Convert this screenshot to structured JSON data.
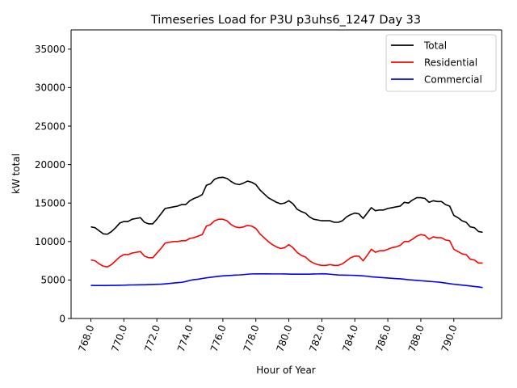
{
  "chart_data": {
    "type": "line",
    "title": "Timeseries Load for P3U p3uhs6_1247  Day 33",
    "xlabel": "Hour of Year",
    "ylabel": "kW total",
    "xlim": [
      766.8,
      792.9
    ],
    "ylim": [
      0,
      37500
    ],
    "xticks": [
      768,
      770,
      772,
      774,
      776,
      778,
      780,
      782,
      784,
      786,
      788,
      790
    ],
    "xtick_labels": [
      "768.0",
      "770.0",
      "772.0",
      "774.0",
      "776.0",
      "778.0",
      "780.0",
      "782.0",
      "784.0",
      "786.0",
      "788.0",
      "790.0"
    ],
    "yticks": [
      0,
      5000,
      10000,
      15000,
      20000,
      25000,
      30000,
      35000
    ],
    "ytick_labels": [
      "0",
      "5000",
      "10000",
      "15000",
      "20000",
      "25000",
      "30000",
      "35000"
    ],
    "x": [
      768.0,
      768.25,
      768.5,
      768.75,
      769.0,
      769.25,
      769.5,
      769.75,
      770.0,
      770.25,
      770.5,
      770.75,
      771.0,
      771.25,
      771.5,
      771.75,
      772.0,
      772.25,
      772.5,
      772.75,
      773.0,
      773.25,
      773.5,
      773.75,
      774.0,
      774.25,
      774.5,
      774.75,
      775.0,
      775.25,
      775.5,
      775.75,
      776.0,
      776.25,
      776.5,
      776.75,
      777.0,
      777.25,
      777.5,
      777.75,
      778.0,
      778.25,
      778.5,
      778.75,
      779.0,
      779.25,
      779.5,
      779.75,
      780.0,
      780.25,
      780.5,
      780.75,
      781.0,
      781.25,
      781.5,
      781.75,
      782.0,
      782.25,
      782.5,
      782.75,
      783.0,
      783.25,
      783.5,
      783.75,
      784.0,
      784.25,
      784.5,
      784.75,
      785.0,
      785.25,
      785.5,
      785.75,
      786.0,
      786.25,
      786.5,
      786.75,
      787.0,
      787.25,
      787.5,
      787.75,
      788.0,
      788.25,
      788.5,
      788.75,
      789.0,
      789.25,
      789.5,
      789.75,
      790.0,
      790.25,
      790.5,
      790.75,
      791.0,
      791.25,
      791.5,
      791.75
    ],
    "series": [
      {
        "name": "Total",
        "color": "#000000",
        "values": [
          11900,
          11800,
          11400,
          11000,
          10950,
          11300,
          11800,
          12400,
          12600,
          12600,
          12900,
          13000,
          13100,
          12500,
          12300,
          12300,
          12900,
          13600,
          14300,
          14400,
          14500,
          14600,
          14800,
          14800,
          15300,
          15600,
          15800,
          16100,
          17300,
          17500,
          18100,
          18300,
          18350,
          18200,
          17800,
          17500,
          17400,
          17600,
          17850,
          17700,
          17400,
          16700,
          16200,
          15700,
          15400,
          15100,
          14900,
          15000,
          15300,
          14900,
          14200,
          13900,
          13700,
          13200,
          12900,
          12800,
          12700,
          12700,
          12700,
          12500,
          12500,
          12700,
          13200,
          13500,
          13700,
          13600,
          13000,
          13700,
          14400,
          14000,
          14100,
          14100,
          14300,
          14400,
          14500,
          14600,
          15100,
          15000,
          15400,
          15700,
          15700,
          15600,
          15100,
          15300,
          15200,
          15200,
          14800,
          14600,
          13400,
          13100,
          12700,
          12500,
          11900,
          11800,
          11300,
          11200
        ]
      },
      {
        "name": "Residential",
        "color": "#ff0000",
        "values": [
          7600,
          7500,
          7100,
          6800,
          6700,
          7000,
          7500,
          8000,
          8300,
          8300,
          8500,
          8600,
          8700,
          8100,
          7900,
          7900,
          8500,
          9100,
          9800,
          9900,
          10000,
          10000,
          10100,
          10100,
          10400,
          10500,
          10700,
          10900,
          12000,
          12200,
          12700,
          12900,
          12900,
          12700,
          12200,
          11900,
          11800,
          11900,
          12100,
          12000,
          11700,
          11000,
          10500,
          10000,
          9600,
          9300,
          9100,
          9200,
          9600,
          9200,
          8600,
          8200,
          8000,
          7500,
          7200,
          7000,
          6900,
          6900,
          7000,
          6900,
          6900,
          7100,
          7500,
          7900,
          8100,
          8100,
          7500,
          8200,
          9000,
          8600,
          8800,
          8800,
          9000,
          9200,
          9300,
          9500,
          10000,
          10000,
          10300,
          10700,
          10900,
          10800,
          10300,
          10600,
          10500,
          10500,
          10200,
          10100,
          9000,
          8700,
          8400,
          8300,
          7700,
          7600,
          7200,
          7200
        ]
      },
      {
        "name": "Commercial",
        "color": "#0000ff",
        "values": [
          4300,
          4290,
          4290,
          4290,
          4290,
          4300,
          4300,
          4310,
          4320,
          4350,
          4360,
          4370,
          4380,
          4380,
          4400,
          4420,
          4440,
          4460,
          4500,
          4550,
          4600,
          4650,
          4700,
          4800,
          4950,
          5050,
          5100,
          5200,
          5280,
          5350,
          5420,
          5480,
          5530,
          5570,
          5600,
          5640,
          5660,
          5700,
          5750,
          5790,
          5800,
          5800,
          5800,
          5800,
          5790,
          5790,
          5790,
          5780,
          5770,
          5760,
          5760,
          5760,
          5760,
          5760,
          5780,
          5790,
          5810,
          5800,
          5750,
          5700,
          5650,
          5640,
          5630,
          5620,
          5600,
          5570,
          5530,
          5490,
          5420,
          5380,
          5340,
          5300,
          5260,
          5220,
          5180,
          5150,
          5100,
          5040,
          5000,
          4960,
          4910,
          4870,
          4830,
          4780,
          4740,
          4680,
          4600,
          4520,
          4450,
          4390,
          4340,
          4290,
          4220,
          4160,
          4100,
          4020
        ]
      }
    ],
    "legend": {
      "placement": "top-right",
      "entries": [
        "Total",
        "Residential",
        "Commercial"
      ]
    }
  }
}
